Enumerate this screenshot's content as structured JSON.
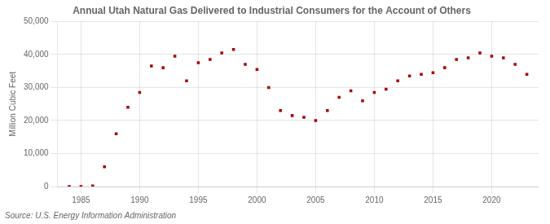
{
  "chart_data": {
    "type": "scatter",
    "title": "Annual Utah Natural Gas Delivered to Industrial Consumers for the Account of Others",
    "ylabel": "Million Cubic Feet",
    "annotations": [
      "Source: U.S. Energy Information Administration"
    ],
    "color": "#aa0000",
    "marker": "square",
    "grid": true,
    "xlim": [
      1983,
      2024
    ],
    "xticks": [
      1985,
      1990,
      1995,
      2000,
      2005,
      2010,
      2015,
      2020
    ],
    "ylim": [
      0,
      50000
    ],
    "yticks": [
      0,
      {
        "value": 10000,
        "label": "10,000"
      },
      {
        "value": 20000,
        "label": "20,000"
      },
      {
        "value": 30000,
        "label": "30,000"
      },
      {
        "value": 40000,
        "label": "40,000"
      },
      {
        "value": 50000,
        "label": "50,000"
      }
    ],
    "x": [
      1984,
      1985,
      1986,
      1987,
      1988,
      1989,
      1990,
      1991,
      1992,
      1993,
      1994,
      1995,
      1996,
      1997,
      1998,
      1999,
      2000,
      2001,
      2002,
      2003,
      2004,
      2005,
      2006,
      2007,
      2008,
      2009,
      2010,
      2011,
      2012,
      2013,
      2014,
      2015,
      2016,
      2017,
      2018,
      2019,
      2020,
      2021,
      2022,
      2023
    ],
    "values": [
      0,
      0,
      180,
      6000,
      16000,
      24000,
      28500,
      36500,
      36000,
      39500,
      32000,
      37500,
      38500,
      40500,
      41500,
      37000,
      35500,
      30000,
      23000,
      21500,
      21000,
      20000,
      23000,
      27000,
      29000,
      26000,
      28500,
      29500,
      32000,
      33500,
      34000,
      34500,
      36000,
      38500,
      39000,
      40500,
      39500,
      39000,
      37000,
      34000
    ]
  }
}
